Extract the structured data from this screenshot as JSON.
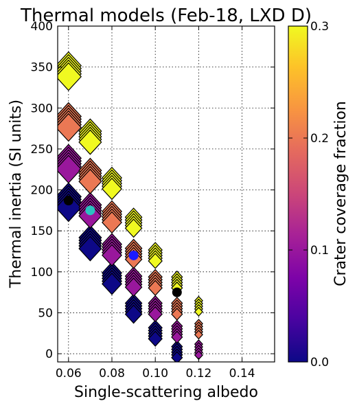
{
  "chart_data": {
    "type": "scatter",
    "title": "Thermal models (Feb-18, LXD D)",
    "xlabel": "Single-scattering albedo",
    "ylabel": "Thermal inertia (SI units)",
    "xlim": [
      0.055,
      0.155
    ],
    "ylim": [
      -10,
      400
    ],
    "xticks": [
      0.06,
      0.08,
      0.1,
      0.12,
      0.14
    ],
    "xtick_labels": [
      "0.06",
      "0.08",
      "0.10",
      "0.12",
      "0.14"
    ],
    "yticks": [
      0,
      50,
      100,
      150,
      200,
      250,
      300,
      350,
      400
    ],
    "ytick_labels": [
      "0",
      "50",
      "100",
      "150",
      "200",
      "250",
      "300",
      "350",
      "400"
    ],
    "grid": true,
    "colorbar": {
      "label": "Crater coverage fraction",
      "range": [
        0.0,
        0.3
      ],
      "ticks": [
        0.0,
        0.1,
        0.2,
        0.3
      ],
      "tick_labels": [
        "0.0",
        "0.1",
        "0.2",
        "0.3"
      ],
      "colormap": "plasma"
    },
    "models": [
      {
        "albedo": 0.06,
        "inertia": 185,
        "crater_fraction": 0.0
      },
      {
        "albedo": 0.06,
        "inertia": 232,
        "crater_fraction": 0.1
      },
      {
        "albedo": 0.06,
        "inertia": 283,
        "crater_fraction": 0.2
      },
      {
        "albedo": 0.06,
        "inertia": 345,
        "crater_fraction": 0.3
      },
      {
        "albedo": 0.07,
        "inertia": 135,
        "crater_fraction": 0.0
      },
      {
        "albedo": 0.07,
        "inertia": 175,
        "crater_fraction": 0.1
      },
      {
        "albedo": 0.07,
        "inertia": 217,
        "crater_fraction": 0.2
      },
      {
        "albedo": 0.07,
        "inertia": 265,
        "crater_fraction": 0.3
      },
      {
        "albedo": 0.08,
        "inertia": 92,
        "crater_fraction": 0.0
      },
      {
        "albedo": 0.08,
        "inertia": 127,
        "crater_fraction": 0.1
      },
      {
        "albedo": 0.08,
        "inertia": 167,
        "crater_fraction": 0.2
      },
      {
        "albedo": 0.08,
        "inertia": 208,
        "crater_fraction": 0.3
      },
      {
        "albedo": 0.09,
        "inertia": 55,
        "crater_fraction": 0.0
      },
      {
        "albedo": 0.09,
        "inertia": 88,
        "crater_fraction": 0.1
      },
      {
        "albedo": 0.09,
        "inertia": 122,
        "crater_fraction": 0.2
      },
      {
        "albedo": 0.09,
        "inertia": 160,
        "crater_fraction": 0.3
      },
      {
        "albedo": 0.1,
        "inertia": 25,
        "crater_fraction": 0.0
      },
      {
        "albedo": 0.1,
        "inertia": 55,
        "crater_fraction": 0.1
      },
      {
        "albedo": 0.1,
        "inertia": 87,
        "crater_fraction": 0.2
      },
      {
        "albedo": 0.1,
        "inertia": 120,
        "crater_fraction": 0.3
      },
      {
        "albedo": 0.11,
        "inertia": 2,
        "crater_fraction": 0.0
      },
      {
        "albedo": 0.11,
        "inertia": 27,
        "crater_fraction": 0.1
      },
      {
        "albedo": 0.11,
        "inertia": 55,
        "crater_fraction": 0.2
      },
      {
        "albedo": 0.11,
        "inertia": 87,
        "crater_fraction": 0.3
      },
      {
        "albedo": 0.12,
        "inertia": 5,
        "crater_fraction": 0.1
      },
      {
        "albedo": 0.12,
        "inertia": 30,
        "crater_fraction": 0.2
      },
      {
        "albedo": 0.12,
        "inertia": 58,
        "crater_fraction": 0.3
      }
    ],
    "highlighted_points": [
      {
        "albedo": 0.06,
        "inertia": 187,
        "color": "#000000"
      },
      {
        "albedo": 0.07,
        "inertia": 175,
        "color": "#2cc1c1"
      },
      {
        "albedo": 0.09,
        "inertia": 120,
        "color": "#1a1aff"
      },
      {
        "albedo": 0.11,
        "inertia": 75,
        "color": "#000000"
      }
    ]
  }
}
